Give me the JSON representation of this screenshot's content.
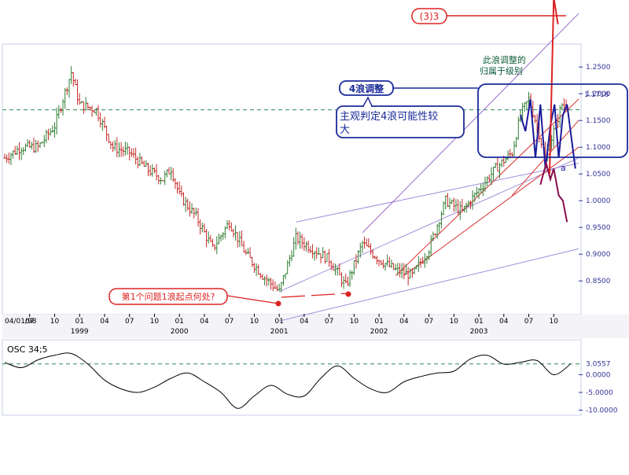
{
  "chart_data": [
    {
      "type": "ohlc",
      "colors": {
        "up": "#2e7d32",
        "down": "#c62828",
        "background": "#ffffff",
        "frame": "#c7d2e4",
        "axis_text": "#333399"
      },
      "y_axis": {
        "ylim": [
          0.79,
          1.29
        ],
        "ticks": [
          "1.2500",
          "1.2000",
          "1.1500",
          "1.1000",
          "1.0500",
          "1.0000",
          "0.9500",
          "0.9000",
          "0.8500"
        ],
        "tick_values": [
          1.25,
          1.2,
          1.15,
          1.1,
          1.05,
          1.0,
          0.95,
          0.9,
          0.85
        ]
      },
      "x_axis": {
        "month_labels": [
          "04",
          "07",
          "10",
          "01",
          "04",
          "07",
          "10",
          "01",
          "04",
          "07",
          "10",
          "01",
          "04",
          "07",
          "10",
          "01",
          "04",
          "07",
          "10",
          "01",
          "04",
          "07",
          "10"
        ],
        "month_index": [
          0,
          3,
          6,
          9,
          12,
          15,
          18,
          21,
          24,
          27,
          30,
          33,
          36,
          39,
          42,
          45,
          48,
          51,
          54,
          57,
          60,
          63,
          66
        ],
        "start_label": "04/01/98",
        "year_labels": [
          "1999",
          "2000",
          "2001",
          "2002",
          "2003"
        ],
        "year_index": [
          9,
          21,
          33,
          45,
          57
        ],
        "months_total": 69
      },
      "anchors": [
        [
          0,
          1.08
        ],
        [
          2,
          1.1
        ],
        [
          4,
          1.1
        ],
        [
          6,
          1.14
        ],
        [
          8,
          1.24
        ],
        [
          9,
          1.18
        ],
        [
          11,
          1.17
        ],
        [
          13,
          1.1
        ],
        [
          15,
          1.09
        ],
        [
          17,
          1.06
        ],
        [
          19,
          1.04
        ],
        [
          20,
          1.06
        ],
        [
          21,
          1.01
        ],
        [
          23,
          0.97
        ],
        [
          25,
          0.91
        ],
        [
          27,
          0.96
        ],
        [
          29,
          0.9
        ],
        [
          31,
          0.86
        ],
        [
          33,
          0.83
        ],
        [
          35,
          0.93
        ],
        [
          37,
          0.91
        ],
        [
          39,
          0.89
        ],
        [
          41,
          0.84
        ],
        [
          43,
          0.92
        ],
        [
          45,
          0.89
        ],
        [
          47,
          0.87
        ],
        [
          49,
          0.86
        ],
        [
          51,
          0.91
        ],
        [
          53,
          1.0
        ],
        [
          55,
          0.98
        ],
        [
          57,
          1.02
        ],
        [
          59,
          1.06
        ],
        [
          61,
          1.09
        ],
        [
          62,
          1.16
        ],
        [
          63,
          1.19
        ],
        [
          64,
          1.14
        ],
        [
          65,
          1.08
        ],
        [
          66,
          1.13
        ],
        [
          67,
          1.18
        ]
      ],
      "trend_lines": [
        {
          "from": [
            33,
            0.83
          ],
          "to": [
            69,
            1.08
          ],
          "color": "#a08cd8"
        },
        {
          "from": [
            35,
            0.96
          ],
          "to": [
            69,
            1.07
          ],
          "color": "#a08cd8"
        },
        {
          "from": [
            33,
            0.775
          ],
          "to": [
            69,
            0.91
          ],
          "color": "#a08cd8"
        },
        {
          "from": [
            43,
            0.94
          ],
          "to": [
            69,
            1.35
          ],
          "color": "#9966cc"
        },
        {
          "from": [
            47,
            0.86
          ],
          "to": [
            69,
            1.19
          ],
          "color": "#d93030"
        },
        {
          "from": [
            48,
            0.86
          ],
          "to": [
            69,
            1.1
          ],
          "color": "#d93030"
        },
        {
          "from": [
            61,
            1.01
          ],
          "to": [
            69,
            1.15
          ],
          "color": "#d93030"
        }
      ],
      "resistance_line": {
        "value": 1.17,
        "color": "#2e8b57"
      },
      "wave_paths": [
        {
          "color": "#1a1a99",
          "points": [
            [
              62,
              1.16
            ],
            [
              62.6,
              1.13
            ],
            [
              63.2,
              1.19
            ],
            [
              63.8,
              1.08
            ],
            [
              64.4,
              1.18
            ],
            [
              65,
              1.06
            ],
            [
              65.6,
              1.14
            ],
            [
              66.1,
              1.18
            ],
            [
              66.6,
              1.08
            ],
            [
              67.1,
              1.16
            ],
            [
              67.6,
              1.18
            ],
            [
              68.1,
              1.12
            ],
            [
              68.6,
              1.06
            ]
          ]
        },
        {
          "color": "#880e4f",
          "points": [
            [
              64.4,
              1.03
            ],
            [
              65.1,
              1.07
            ],
            [
              65.6,
              1.04
            ],
            [
              66,
              1.06
            ],
            [
              66.6,
              1.01
            ],
            [
              67.1,
              1.0
            ],
            [
              67.6,
              0.96
            ]
          ]
        }
      ],
      "red_marker_path": {
        "color": "#dd2222",
        "points": [
          [
            65.5,
            1.05
          ],
          [
            66,
            1.38
          ],
          [
            66.5,
            1.33
          ]
        ]
      },
      "annotations": {
        "wave_3_label": "(3)3",
        "wave4_label": "4浪调整",
        "subjective_note": "主观判定4浪可能性较大",
        "wave_degree_note": "此浪调整的归属于级别",
        "wave1_question": "第1个问题1浪起点何处?",
        "a_label": "a",
        "price_tag": "1.1718"
      }
    },
    {
      "type": "line",
      "title": "OSC 34;5",
      "ylim": [
        -11,
        9
      ],
      "y_ticks": [
        "-10.0000",
        "-5.0000",
        "0.0000"
      ],
      "y_tick_values": [
        -10,
        -5,
        0
      ],
      "last_value_label": "3.0557",
      "last_value": 3.0557,
      "color": "#000000",
      "reference_color": "#2e8b57",
      "x": [
        0,
        2,
        4,
        6,
        8,
        10,
        12,
        14,
        16,
        18,
        20,
        22,
        24,
        26,
        28,
        30,
        32,
        34,
        36,
        38,
        40,
        42,
        44,
        46,
        48,
        50,
        52,
        54,
        56,
        58,
        60,
        62,
        64,
        66,
        68
      ],
      "values": [
        3.5,
        2.0,
        4.2,
        5.5,
        6.0,
        3.0,
        -1.5,
        -4.0,
        -5.0,
        -3.5,
        -1.0,
        0.5,
        -2.0,
        -5.0,
        -9.5,
        -6.0,
        -3.0,
        -5.5,
        -6.0,
        -1.0,
        2.5,
        -1.0,
        -4.0,
        -5.0,
        -2.0,
        -0.5,
        0.5,
        1.0,
        4.5,
        5.5,
        3.0,
        3.5,
        4.0,
        0.0,
        3.0
      ]
    }
  ]
}
